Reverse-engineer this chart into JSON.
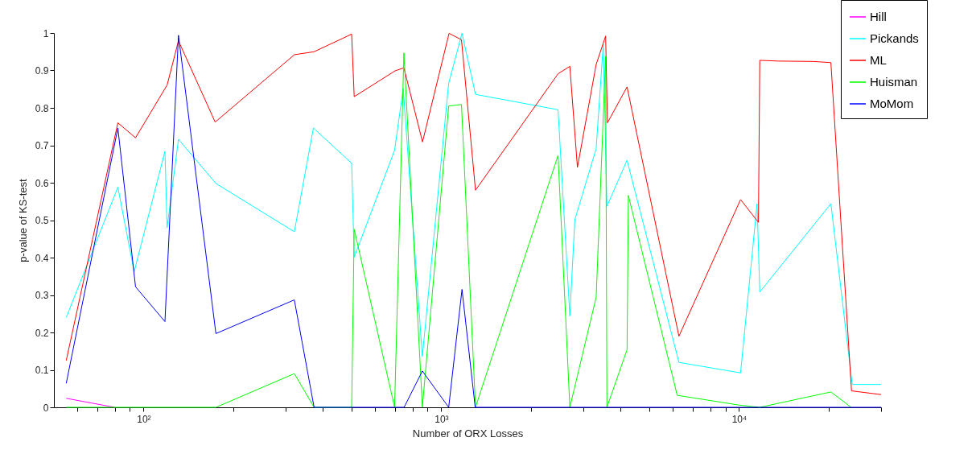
{
  "chart_data": {
    "type": "line",
    "xlabel": "Number of ORX Losses",
    "ylabel": "p-value of KS-test",
    "log": "x",
    "xlim": [
      50,
      30000
    ],
    "xticks": [
      {
        "value": 60,
        "label": null
      },
      {
        "value": 70,
        "label": null
      },
      {
        "value": 80,
        "label": null
      },
      {
        "value": 90,
        "label": null
      },
      {
        "value": 100,
        "label": "10²"
      },
      {
        "value": 200,
        "label": null
      },
      {
        "value": 300,
        "label": null
      },
      {
        "value": 400,
        "label": null
      },
      {
        "value": 500,
        "label": null
      },
      {
        "value": 600,
        "label": null
      },
      {
        "value": 700,
        "label": null
      },
      {
        "value": 800,
        "label": null
      },
      {
        "value": 900,
        "label": null
      },
      {
        "value": 1000,
        "label": "10³"
      },
      {
        "value": 2000,
        "label": null
      },
      {
        "value": 3000,
        "label": null
      },
      {
        "value": 4000,
        "label": null
      },
      {
        "value": 5000,
        "label": null
      },
      {
        "value": 6000,
        "label": null
      },
      {
        "value": 7000,
        "label": null
      },
      {
        "value": 8000,
        "label": null
      },
      {
        "value": 9000,
        "label": null
      },
      {
        "value": 10000,
        "label": "10⁴"
      },
      {
        "value": 20000,
        "label": null
      },
      {
        "value": 30000,
        "label": null
      }
    ],
    "ylim": [
      0,
      1
    ],
    "yticks": [
      0,
      0.1,
      0.2,
      0.3,
      0.4,
      0.5,
      0.6,
      0.7,
      0.8,
      0.9,
      1
    ],
    "grid": false,
    "legend": "top right",
    "series": [
      {
        "name": "Hill",
        "color": "#ff00ff",
        "x": [
          55,
          80
        ],
        "values": [
          0.024,
          0
        ]
      },
      {
        "name": "Pickands",
        "color": "#00ffff",
        "x": [
          55,
          82,
          93,
          118,
          120,
          131,
          175,
          321,
          372,
          500,
          510,
          697,
          745,
          864,
          1059,
          1174,
          1303,
          2467,
          2703,
          2809,
          3313,
          3500,
          3600,
          4207,
          6283,
          10120,
          11500,
          11740,
          20350,
          24000,
          30000
        ],
        "values": [
          0.24,
          0.588,
          0.362,
          0.684,
          0.48,
          0.716,
          0.598,
          0.469,
          0.746,
          0.652,
          0.401,
          0.687,
          0.852,
          0.136,
          0.866,
          0.999,
          0.836,
          0.795,
          0.244,
          0.501,
          0.691,
          0.97,
          0.537,
          0.66,
          0.12,
          0.092,
          0.544,
          0.308,
          0.544,
          0.061,
          0.061
        ]
      },
      {
        "name": "ML",
        "color": "#ff0000",
        "x": [
          55,
          82,
          94,
          120,
          131,
          174,
          321,
          374,
          500,
          510,
          700,
          749,
          865,
          1062,
          1169,
          1303,
          2467,
          2703,
          2866,
          3313,
          3565,
          3615,
          4207,
          6283,
          10120,
          11620,
          11740,
          13590,
          17700,
          20350,
          23870,
          30000
        ],
        "values": [
          0.125,
          0.76,
          0.72,
          0.861,
          0.979,
          0.762,
          0.942,
          0.95,
          0.997,
          0.83,
          0.899,
          0.907,
          0.709,
          0.999,
          0.982,
          0.58,
          0.891,
          0.911,
          0.641,
          0.916,
          0.992,
          0.76,
          0.856,
          0.19,
          0.555,
          0.494,
          0.927,
          0.925,
          0.924,
          0.921,
          0.044,
          0.034
        ]
      },
      {
        "name": "Huisman",
        "color": "#00ff00",
        "x": [
          55,
          175,
          321,
          374,
          500,
          510,
          697,
          749,
          864,
          1059,
          1169,
          1303,
          2467,
          2703,
          3313,
          3565,
          3600,
          4207,
          4250,
          6200,
          10000,
          11740,
          20350,
          23800
        ],
        "values": [
          0,
          0,
          0.09,
          0,
          0,
          0.476,
          0,
          0.947,
          0,
          0.805,
          0.809,
          0,
          0.673,
          0,
          0.294,
          0.938,
          0,
          0.154,
          0.566,
          0.032,
          0.006,
          0,
          0.041,
          0
        ]
      },
      {
        "name": "MoMom",
        "color": "#0000ff",
        "x": [
          55,
          82,
          94,
          118,
          131,
          175,
          321,
          374,
          750,
          864,
          1059,
          1174,
          1300,
          30000
        ],
        "values": [
          0.064,
          0.746,
          0.322,
          0.229,
          0.994,
          0.197,
          0.287,
          0,
          0,
          0.097,
          0,
          0.315,
          0,
          0
        ]
      }
    ]
  }
}
